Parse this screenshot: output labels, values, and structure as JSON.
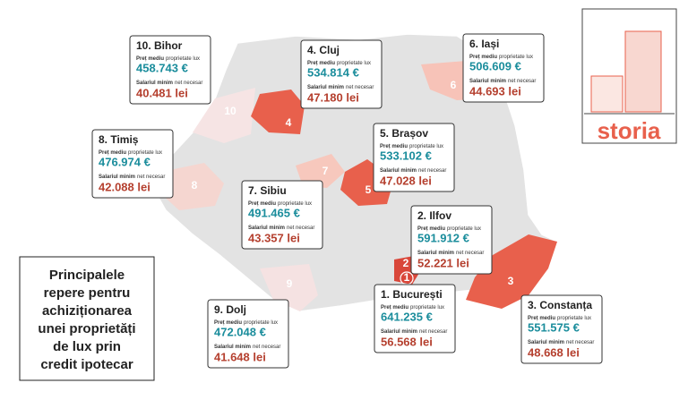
{
  "title_lines": [
    "Principalele",
    "repere pentru",
    "achiziționarea",
    "unei proprietăți",
    "de lux prin",
    "credit ipotecar"
  ],
  "logo": "storia",
  "price_label": {
    "bold": "Preț mediu",
    "rest": "proprietate lux"
  },
  "salary_label": {
    "bold": "Salariul minim",
    "rest": "net necesar"
  },
  "counties": [
    {
      "heading": "1. București",
      "rank": "1",
      "price": "641.235 €",
      "salary": "56.568 lei"
    },
    {
      "heading": "2. Ilfov",
      "rank": "2",
      "price": "591.912 €",
      "salary": "52.221 lei"
    },
    {
      "heading": "3. Constanța",
      "rank": "3",
      "price": "551.575 €",
      "salary": "48.668 lei"
    },
    {
      "heading": "4. Cluj",
      "rank": "4",
      "price": "534.814 €",
      "salary": "47.180 lei"
    },
    {
      "heading": "5. Brașov",
      "rank": "5",
      "price": "533.102 €",
      "salary": "47.028 lei"
    },
    {
      "heading": "6. Iași",
      "rank": "6",
      "price": "506.609 €",
      "salary": "44.693 lei"
    },
    {
      "heading": "7. Sibiu",
      "rank": "7",
      "price": "491.465 €",
      "salary": "43.357 lei"
    },
    {
      "heading": "8. Timiș",
      "rank": "8",
      "price": "476.974 €",
      "salary": "42.088 lei"
    },
    {
      "heading": "9. Dolj",
      "rank": "9",
      "price": "472.048 €",
      "salary": "41.648 lei"
    },
    {
      "heading": "10. Bihor",
      "rank": "10",
      "price": "458.743 €",
      "salary": "40.481 lei"
    }
  ]
}
